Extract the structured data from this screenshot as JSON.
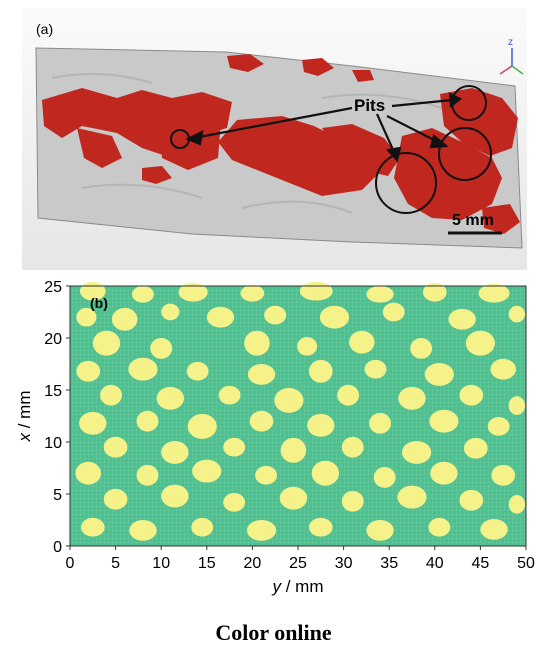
{
  "panel_a": {
    "label": "(a)",
    "annotation": "Pits",
    "scale_bar": "5 mm",
    "axis_indicator": "z"
  },
  "panel_b": {
    "label": "(b)"
  },
  "chart_data": {
    "type": "heatmap",
    "title": "",
    "xlabel_var": "y",
    "xlabel_unit": " / mm",
    "ylabel_var": "x",
    "ylabel_unit": " / mm",
    "xlim": [
      0,
      50
    ],
    "ylim": [
      0,
      25
    ],
    "xticks": [
      "0",
      "5",
      "10",
      "15",
      "20",
      "25",
      "30",
      "35",
      "40",
      "45",
      "50"
    ],
    "yticks": [
      "0",
      "5",
      "10",
      "15",
      "20",
      "25"
    ],
    "background_color": "#4cc08f",
    "grid_line_color": "#7dd3ad",
    "pit_color": "#f6f28a",
    "pits": [
      [
        2.5,
        24.5,
        1.4,
        0.9
      ],
      [
        8.0,
        24.2,
        1.2,
        0.8
      ],
      [
        13.5,
        24.4,
        1.6,
        0.9
      ],
      [
        20.0,
        24.3,
        1.3,
        0.8
      ],
      [
        27.0,
        24.5,
        1.8,
        0.9
      ],
      [
        34.0,
        24.2,
        1.5,
        0.8
      ],
      [
        40.0,
        24.4,
        1.3,
        0.9
      ],
      [
        46.5,
        24.3,
        1.7,
        0.9
      ],
      [
        1.8,
        22.0,
        1.1,
        0.9
      ],
      [
        6.0,
        21.8,
        1.4,
        1.1
      ],
      [
        11.0,
        22.5,
        1.0,
        0.8
      ],
      [
        16.5,
        22.0,
        1.5,
        1.0
      ],
      [
        22.5,
        22.2,
        1.2,
        0.9
      ],
      [
        29.0,
        22.0,
        1.6,
        1.1
      ],
      [
        35.5,
        22.5,
        1.2,
        0.9
      ],
      [
        43.0,
        21.8,
        1.5,
        1.0
      ],
      [
        49.0,
        22.3,
        0.9,
        0.8
      ],
      [
        4.0,
        19.5,
        1.5,
        1.2
      ],
      [
        10.0,
        19.0,
        1.2,
        1.0
      ],
      [
        20.5,
        19.5,
        1.4,
        1.2
      ],
      [
        26.0,
        19.2,
        1.1,
        0.9
      ],
      [
        32.0,
        19.6,
        1.4,
        1.1
      ],
      [
        38.5,
        19.0,
        1.2,
        1.0
      ],
      [
        45.0,
        19.5,
        1.6,
        1.2
      ],
      [
        2.0,
        16.8,
        1.3,
        1.0
      ],
      [
        8.0,
        17.0,
        1.6,
        1.1
      ],
      [
        14.0,
        16.8,
        1.2,
        0.9
      ],
      [
        21.0,
        16.5,
        1.5,
        1.0
      ],
      [
        27.5,
        16.8,
        1.3,
        1.1
      ],
      [
        33.5,
        17.0,
        1.2,
        0.9
      ],
      [
        40.5,
        16.5,
        1.6,
        1.1
      ],
      [
        47.5,
        17.0,
        1.4,
        1.0
      ],
      [
        4.5,
        14.5,
        1.2,
        1.0
      ],
      [
        11.0,
        14.2,
        1.5,
        1.1
      ],
      [
        17.5,
        14.5,
        1.2,
        0.9
      ],
      [
        24.0,
        14.0,
        1.6,
        1.2
      ],
      [
        30.5,
        14.5,
        1.2,
        1.0
      ],
      [
        37.5,
        14.2,
        1.5,
        1.1
      ],
      [
        44.0,
        14.5,
        1.3,
        1.0
      ],
      [
        49.0,
        13.5,
        0.9,
        0.9
      ],
      [
        2.5,
        11.8,
        1.5,
        1.1
      ],
      [
        8.5,
        12.0,
        1.2,
        1.0
      ],
      [
        14.5,
        11.5,
        1.6,
        1.2
      ],
      [
        21.0,
        12.0,
        1.3,
        1.0
      ],
      [
        27.5,
        11.6,
        1.5,
        1.1
      ],
      [
        34.0,
        11.8,
        1.2,
        1.0
      ],
      [
        41.0,
        12.0,
        1.6,
        1.1
      ],
      [
        47.0,
        11.5,
        1.2,
        0.9
      ],
      [
        5.0,
        9.5,
        1.3,
        1.0
      ],
      [
        11.5,
        9.0,
        1.5,
        1.1
      ],
      [
        18.0,
        9.5,
        1.2,
        0.9
      ],
      [
        24.5,
        9.2,
        1.4,
        1.2
      ],
      [
        31.0,
        9.5,
        1.2,
        1.0
      ],
      [
        38.0,
        9.0,
        1.6,
        1.1
      ],
      [
        44.5,
        9.4,
        1.3,
        1.0
      ],
      [
        2.0,
        7.0,
        1.4,
        1.1
      ],
      [
        8.5,
        6.8,
        1.2,
        1.0
      ],
      [
        15.0,
        7.2,
        1.6,
        1.1
      ],
      [
        21.5,
        6.8,
        1.2,
        0.9
      ],
      [
        28.0,
        7.0,
        1.5,
        1.2
      ],
      [
        34.5,
        6.6,
        1.2,
        1.0
      ],
      [
        41.0,
        7.0,
        1.5,
        1.1
      ],
      [
        47.5,
        6.8,
        1.3,
        1.0
      ],
      [
        5.0,
        4.5,
        1.3,
        1.0
      ],
      [
        11.5,
        4.8,
        1.5,
        1.1
      ],
      [
        18.0,
        4.2,
        1.2,
        0.9
      ],
      [
        24.5,
        4.6,
        1.5,
        1.1
      ],
      [
        31.0,
        4.3,
        1.2,
        1.0
      ],
      [
        37.5,
        4.7,
        1.6,
        1.1
      ],
      [
        44.0,
        4.4,
        1.3,
        1.0
      ],
      [
        49.0,
        4.0,
        0.9,
        0.9
      ],
      [
        2.5,
        1.8,
        1.3,
        0.9
      ],
      [
        8.0,
        1.5,
        1.5,
        1.0
      ],
      [
        14.5,
        1.8,
        1.2,
        0.9
      ],
      [
        21.0,
        1.5,
        1.6,
        1.0
      ],
      [
        27.5,
        1.8,
        1.3,
        0.9
      ],
      [
        34.0,
        1.5,
        1.5,
        1.0
      ],
      [
        40.5,
        1.8,
        1.2,
        0.9
      ],
      [
        46.5,
        1.6,
        1.5,
        1.0
      ]
    ]
  },
  "caption": "Color online"
}
